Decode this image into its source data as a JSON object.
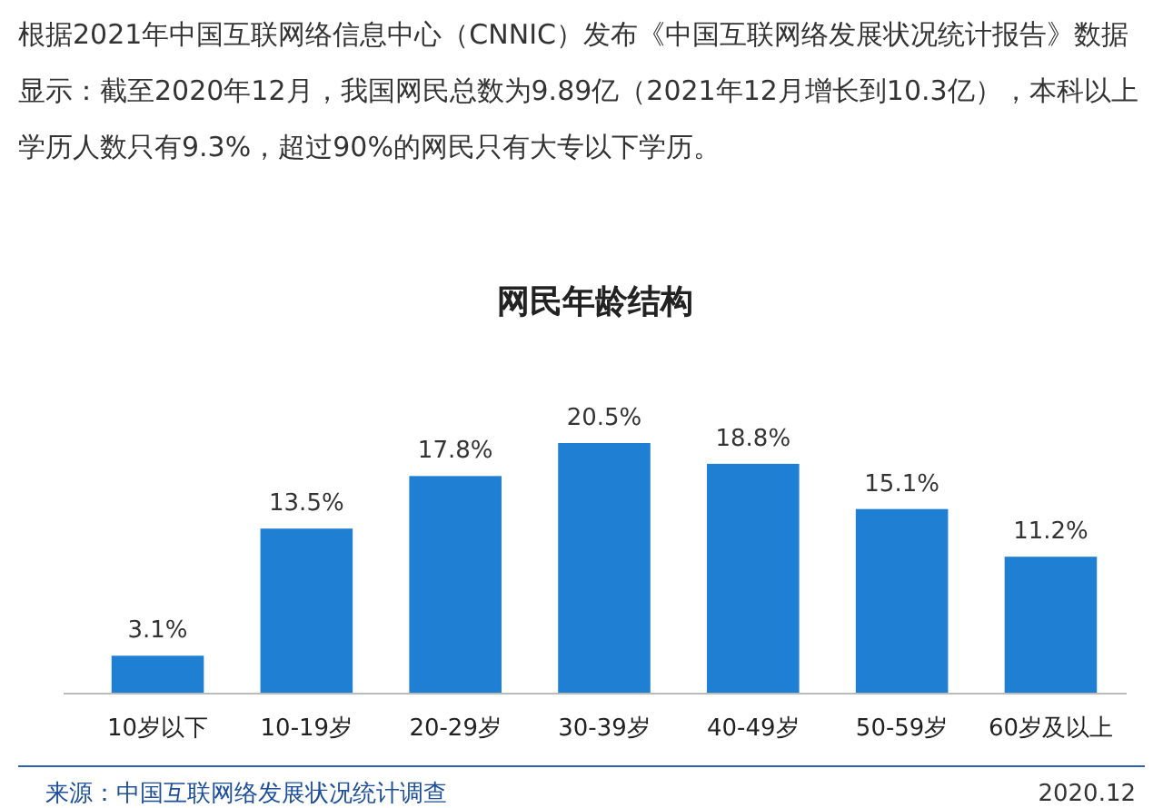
{
  "chart_data": {
    "type": "bar",
    "title": "网民年龄结构",
    "categories": [
      "10岁以下",
      "10-19岁",
      "20-29岁",
      "30-39岁",
      "40-49岁",
      "50-59岁",
      "60岁及以上"
    ],
    "values": [
      3.1,
      13.5,
      17.8,
      20.5,
      18.8,
      15.1,
      11.2
    ],
    "value_labels": [
      "3.1%",
      "13.5%",
      "17.8%",
      "20.5%",
      "18.8%",
      "15.1%",
      "11.2%"
    ],
    "color": "#1f7fd2",
    "annotations": [
      "根据2021年中国互联网络信息中心（CNNIC）发布《中国互联网络发展状况统计报告》数据显示：截至2020年12月，我国网民总数为9.89亿（2021年12月增长到10.3亿），本科以上学历人数只有9.3%，超过90%的网民只有大专以下学历。",
      "来源：中国互联网络发展状况统计调查",
      "2020.12"
    ]
  }
}
